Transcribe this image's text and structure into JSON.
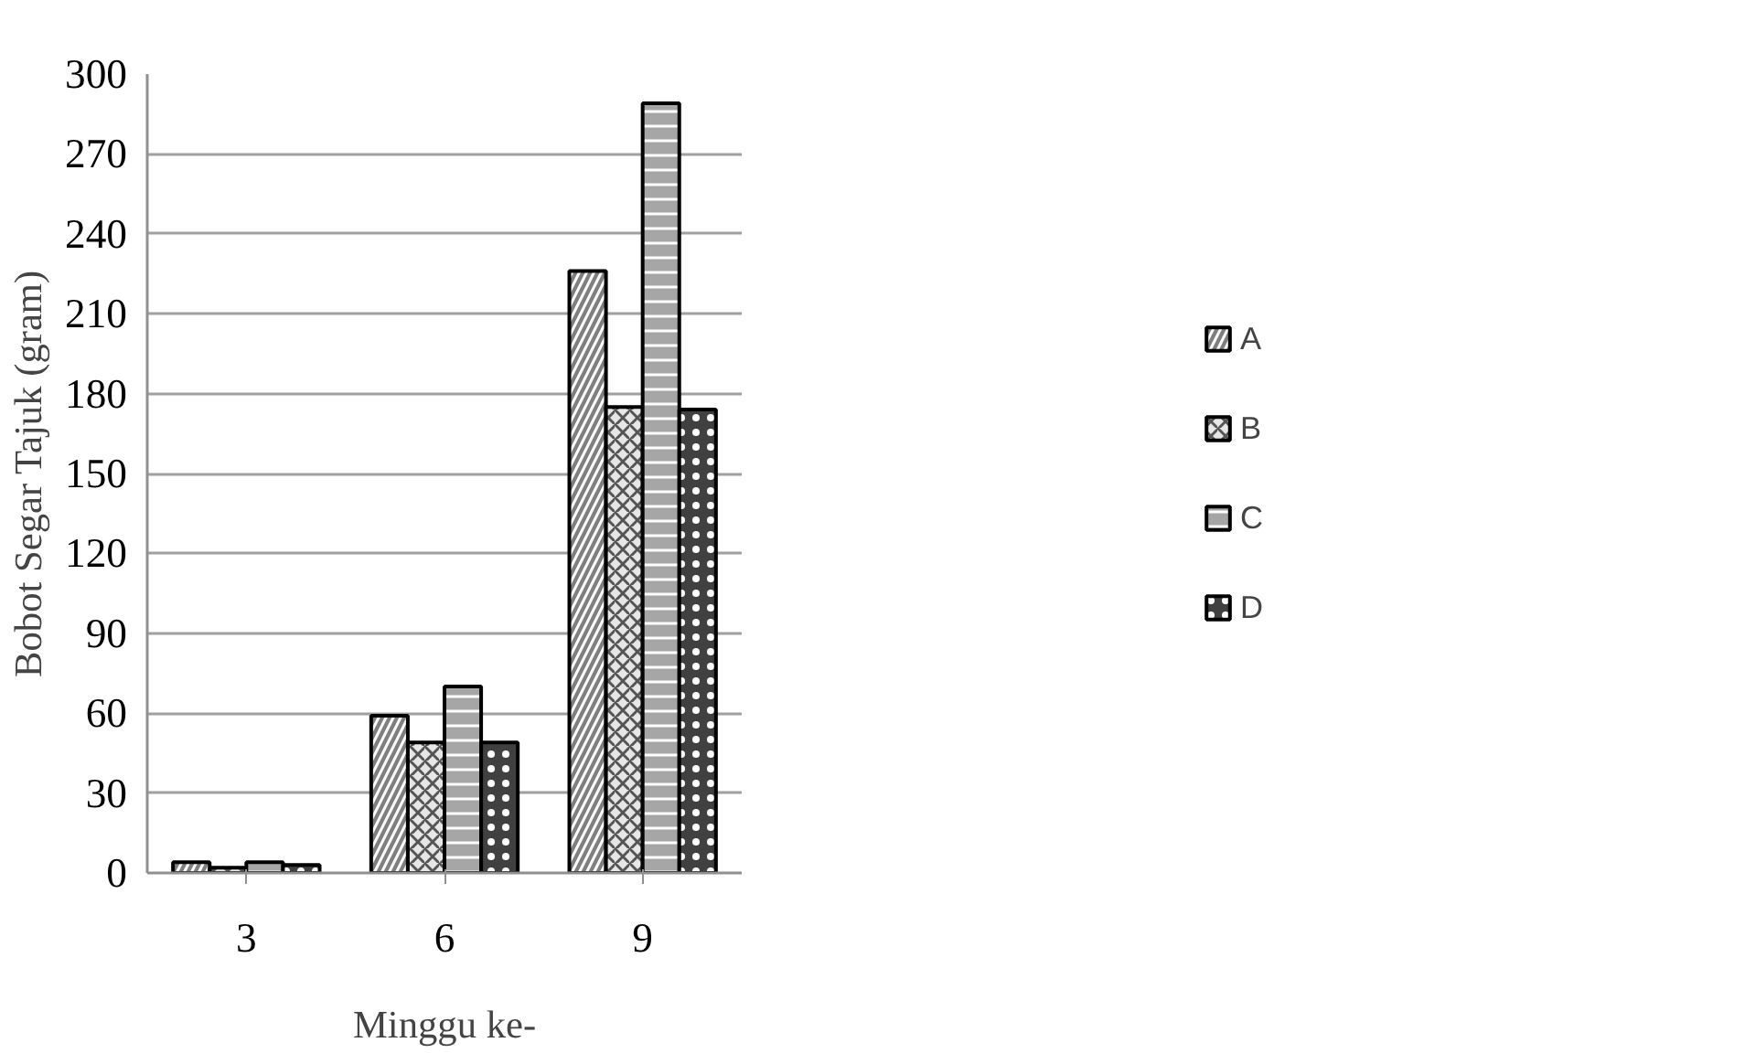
{
  "chart_data": {
    "type": "bar",
    "xlabel": "Minggu ke-",
    "ylabel": "Bobot Segar Tajuk (gram)",
    "categories": [
      "3",
      "6",
      "9"
    ],
    "series": [
      {
        "name": "A",
        "color": "#7f7f7f",
        "values": [
          4,
          59,
          226
        ]
      },
      {
        "name": "B",
        "color": "#e6e6e6",
        "values": [
          2,
          49,
          175
        ]
      },
      {
        "name": "C",
        "color": "#a6a6a6",
        "values": [
          4,
          70,
          289
        ]
      },
      {
        "name": "D",
        "color": "#404040",
        "values": [
          3,
          49,
          174
        ]
      }
    ],
    "ylim": [
      0,
      300
    ],
    "yticks": [
      0,
      30,
      60,
      90,
      120,
      150,
      180,
      210,
      240,
      270,
      300
    ],
    "grid": "y",
    "legend": "right"
  }
}
